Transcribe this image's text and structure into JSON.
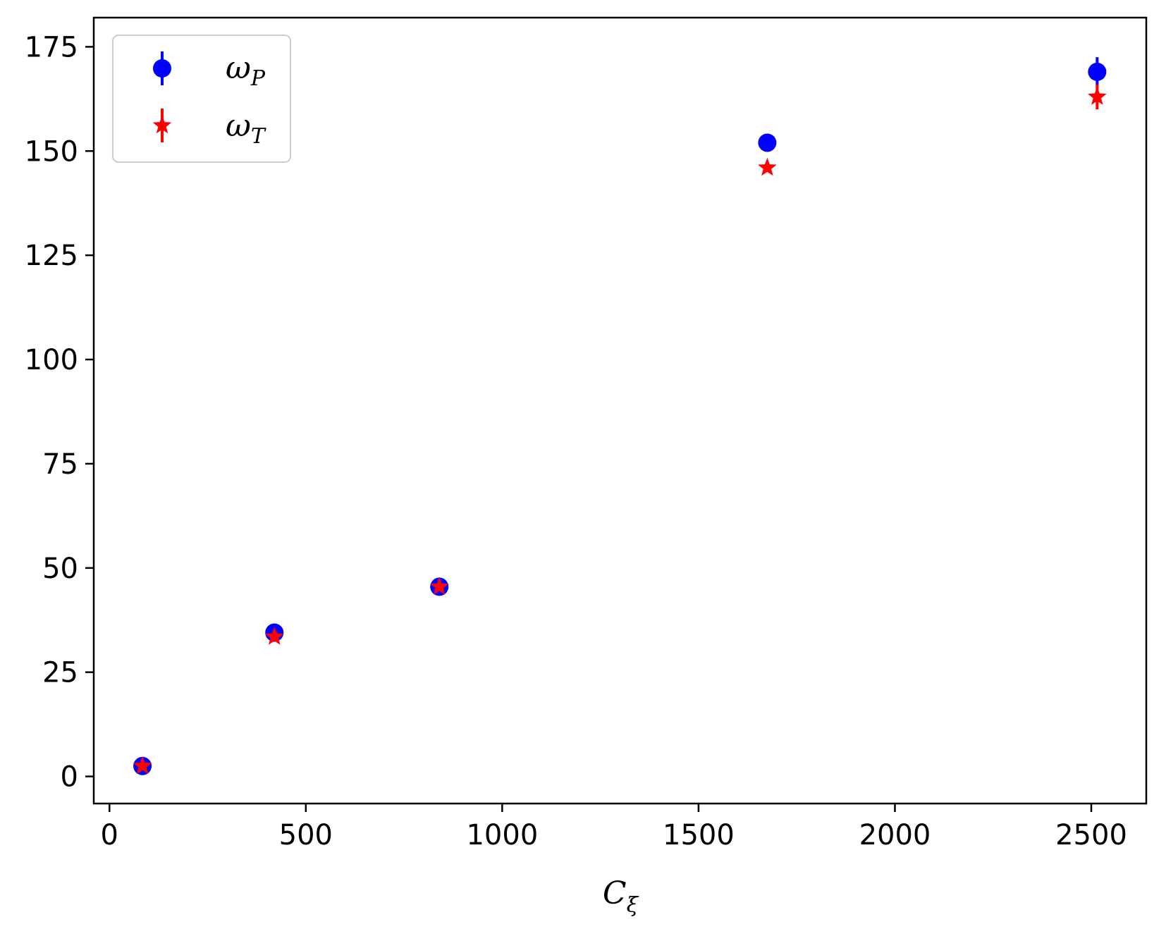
{
  "chart_data": {
    "type": "scatter",
    "xlabel": "C",
    "xlabel_sub": "ξ",
    "ylabel": "",
    "title": "",
    "xlim": [
      -40,
      2640
    ],
    "ylim": [
      -6.5,
      182
    ],
    "x_ticks": [
      0,
      500,
      1000,
      1500,
      2000,
      2500
    ],
    "x_tick_labels": [
      "0",
      "500",
      "1000",
      "1500",
      "2000",
      "2500"
    ],
    "y_ticks": [
      0,
      25,
      50,
      75,
      100,
      125,
      150,
      175
    ],
    "y_tick_labels": [
      "0",
      "25",
      "50",
      "75",
      "100",
      "125",
      "150",
      "175"
    ],
    "grid": false,
    "legend_position": "top-left",
    "series": [
      {
        "name": "ω",
        "name_sub": "P",
        "marker": "circle",
        "color": "#0000ff",
        "points": [
          {
            "x": 84,
            "y": 2.5,
            "err": 0.5
          },
          {
            "x": 420,
            "y": 34.5,
            "err": 0.5
          },
          {
            "x": 840,
            "y": 45.5,
            "err": 0.5
          },
          {
            "x": 1675,
            "y": 152,
            "err": 0.5
          },
          {
            "x": 2515,
            "y": 169,
            "err": 3.5
          }
        ]
      },
      {
        "name": "ω",
        "name_sub": "T",
        "marker": "star",
        "color": "#ff0000",
        "points": [
          {
            "x": 84,
            "y": 2.5,
            "err": 0.5
          },
          {
            "x": 420,
            "y": 33.5,
            "err": 0.5
          },
          {
            "x": 840,
            "y": 45.5,
            "err": 0.5
          },
          {
            "x": 1675,
            "y": 146,
            "err": 0.5
          },
          {
            "x": 2515,
            "y": 163,
            "err": 3
          }
        ]
      }
    ]
  }
}
